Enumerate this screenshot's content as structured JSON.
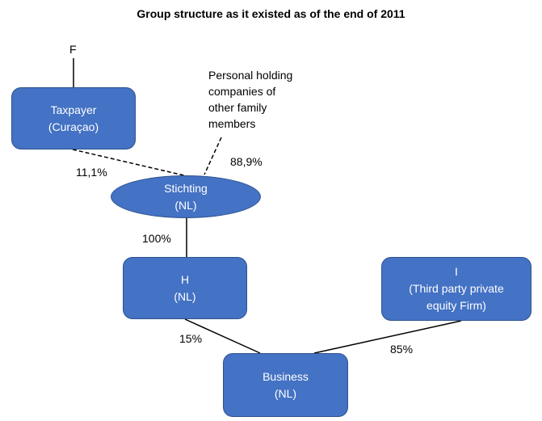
{
  "title": "Group structure as it existed as of the end of 2011",
  "nodes": {
    "f": {
      "label": "F"
    },
    "taxpayer": {
      "line1": "Taxpayer",
      "line2": "(Curaçao)"
    },
    "personal_holdings": {
      "line1": "Personal holding",
      "line2": "companies of",
      "line3": "other family",
      "line4": "members"
    },
    "stichting": {
      "line1": "Stichting",
      "line2": "(NL)"
    },
    "h": {
      "line1": "H",
      "line2": "(NL)"
    },
    "i": {
      "line1": "I",
      "line2": "(Third party private",
      "line3": "equity Firm)"
    },
    "business": {
      "line1": "Business",
      "line2": "(NL)"
    }
  },
  "edges": {
    "taxpayer_to_stichting": {
      "percent": "11,1%",
      "style": "dashed"
    },
    "personal_to_stichting": {
      "percent": "88,9%",
      "style": "dashed"
    },
    "stichting_to_h": {
      "percent": "100%",
      "style": "solid"
    },
    "h_to_business": {
      "percent": "15%",
      "style": "solid"
    },
    "i_to_business": {
      "percent": "85%",
      "style": "solid"
    }
  },
  "colors": {
    "node_fill": "#4472c4",
    "node_border": "#2f528f",
    "node_text": "#ffffff",
    "line": "#000000"
  }
}
